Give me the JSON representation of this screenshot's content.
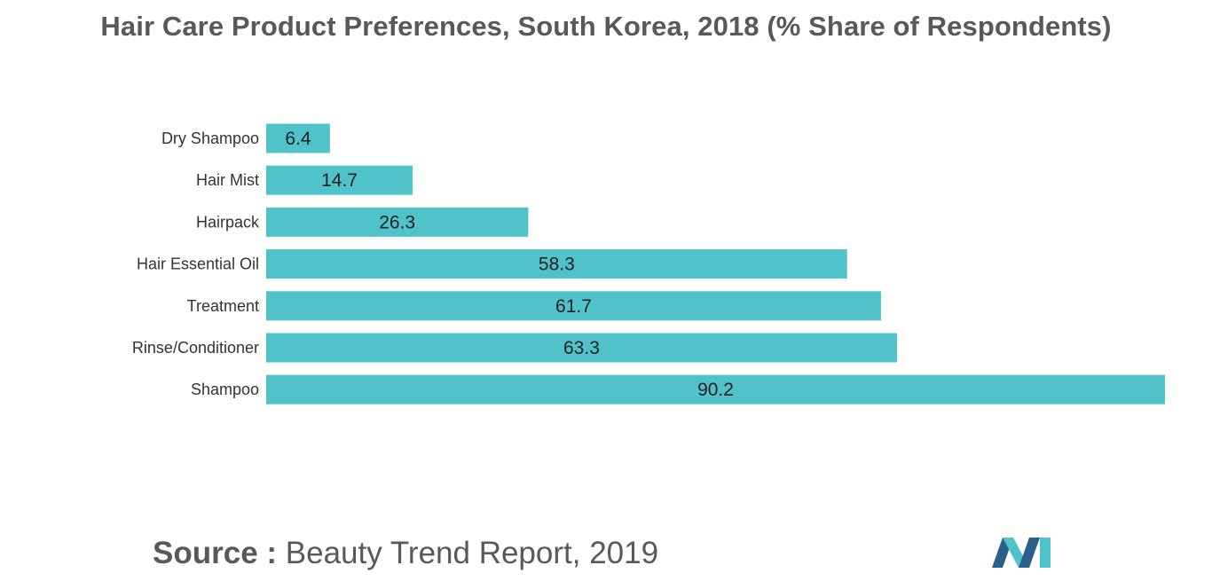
{
  "title": "Hair Care Product Preferences, South Korea, 2018 (% Share of Respondents)",
  "source": {
    "label": "Source :",
    "text": "Beauty Trend Report, 2019"
  },
  "colors": {
    "bar": "#4fc3c9",
    "logo_dark": "#2e5f8a",
    "logo_light": "#4fc3c9"
  },
  "chart_data": {
    "type": "bar",
    "orientation": "horizontal",
    "categories": [
      "Dry Shampoo",
      "Hair Mist",
      "Hairpack",
      "Hair Essential Oil",
      "Treatment",
      "Rinse/Conditioner",
      "Shampoo"
    ],
    "values": [
      6.4,
      14.7,
      26.3,
      58.3,
      61.7,
      63.3,
      90.2
    ],
    "data_labels": [
      "6.4",
      "14.7",
      "26.3",
      "58.3",
      "61.7",
      "63.3",
      "90.2"
    ],
    "xlim": [
      0,
      90.2
    ],
    "grid": false,
    "legend": "none"
  }
}
